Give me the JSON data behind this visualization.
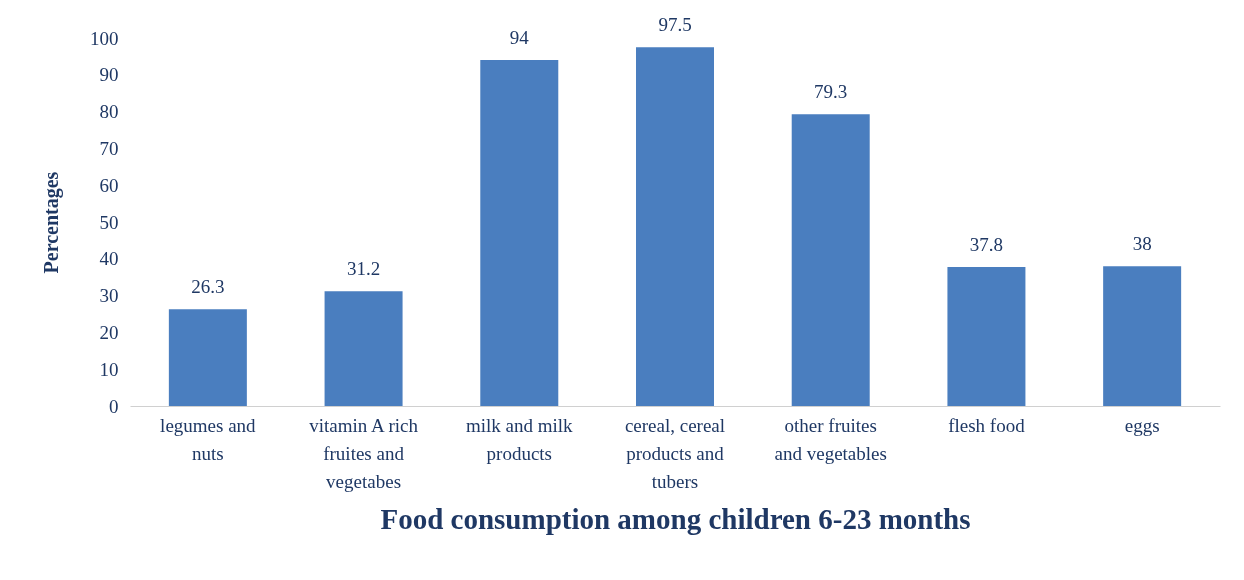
{
  "chart_data": {
    "type": "bar",
    "xlabel": "Food consumption among children 6-23 months",
    "ylabel": "Percentages",
    "categories": [
      "legumes and nuts",
      "vitamin A rich fruites and vegetabes",
      "milk and milk products",
      "cereal, cereal products and tubers",
      "other fruites and vegetables",
      "flesh food",
      "eggs"
    ],
    "values": [
      26.3,
      31.2,
      94,
      97.5,
      79.3,
      37.8,
      38
    ],
    "color": "#4a7ebf",
    "ylim": [
      0,
      100
    ],
    "yticks": [
      0,
      10,
      20,
      30,
      40,
      50,
      60,
      70,
      80,
      90,
      100
    ],
    "data_labels": true
  }
}
